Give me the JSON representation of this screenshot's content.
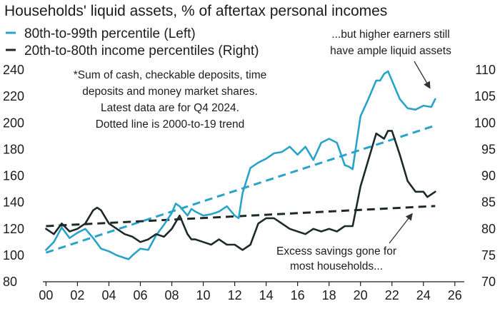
{
  "chart_data": {
    "type": "line",
    "title": "Households' liquid assets, % of aftertax personal incomes",
    "legend_position": "top-left",
    "series": [
      {
        "name": "80th-to-99th percentile (Left)",
        "axis": "left",
        "color": "#2aa3c9",
        "x": [
          2000,
          2000.5,
          2001,
          2001.5,
          2002,
          2002.5,
          2003,
          2003.25,
          2003.5,
          2004,
          2004.5,
          2005,
          2005.25,
          2005.5,
          2006,
          2006.5,
          2007,
          2007.5,
          2008,
          2008.25,
          2008.5,
          2009,
          2009.25,
          2009.5,
          2010,
          2010.5,
          2011,
          2011.5,
          2012,
          2012.25,
          2012.5,
          2013,
          2013.5,
          2014,
          2014.5,
          2015,
          2015.5,
          2016,
          2016.5,
          2017,
          2017.5,
          2018,
          2018.5,
          2019,
          2019.25,
          2019.5,
          2020,
          2020.5,
          2021,
          2021.25,
          2021.5,
          2021.75,
          2022,
          2022.5,
          2023,
          2023.5,
          2024,
          2024.5,
          2024.75
        ],
        "y": [
          104,
          110,
          121,
          113,
          117,
          120,
          113,
          109,
          105,
          103,
          100,
          98,
          97,
          100,
          105,
          104,
          115,
          123,
          132,
          139,
          137,
          130,
          135,
          133,
          130,
          131,
          133,
          137,
          130,
          128,
          147,
          166,
          170,
          173,
          177,
          178,
          182,
          176,
          182,
          172,
          185,
          188,
          185,
          168,
          167,
          165,
          205,
          218,
          232,
          232,
          237,
          239,
          232,
          218,
          211,
          210,
          213,
          212,
          218
        ]
      },
      {
        "name": "20th-to-80th income percentiles (Right)",
        "axis": "right",
        "color": "#1e2a2a",
        "x": [
          2000,
          2000.5,
          2001,
          2001.5,
          2002,
          2002.5,
          2003,
          2003.25,
          2003.5,
          2004,
          2004.5,
          2005,
          2005.5,
          2006,
          2006.5,
          2007,
          2007.5,
          2008,
          2008.5,
          2009,
          2009.25,
          2009.5,
          2010,
          2010.5,
          2011,
          2011.5,
          2012,
          2012.5,
          2013,
          2013.5,
          2014,
          2014.5,
          2015,
          2015.5,
          2016,
          2016.5,
          2017,
          2017.5,
          2018,
          2018.5,
          2019,
          2019.5,
          2020,
          2020.5,
          2021,
          2021.5,
          2021.75,
          2022,
          2022.5,
          2023,
          2023.5,
          2024,
          2024.25,
          2024.5,
          2024.75
        ],
        "y": [
          80,
          79,
          81,
          79.5,
          80,
          81,
          83.5,
          84,
          83.5,
          81,
          80,
          79,
          78.5,
          77.5,
          78,
          79,
          78.5,
          80,
          82.5,
          79,
          78,
          78,
          77.5,
          77,
          78,
          77,
          77,
          76,
          77,
          81,
          82,
          82,
          81,
          80,
          79.5,
          79,
          80,
          79.5,
          80,
          79.5,
          80.5,
          80.5,
          88,
          93,
          98,
          97,
          98.5,
          98.5,
          94,
          89,
          87,
          87,
          86,
          86.5,
          87
        ]
      }
    ],
    "trend_lines": [
      {
        "axis": "left",
        "color": "#2aa3c9",
        "x": [
          2000,
          2024.75
        ],
        "y": [
          102,
          198
        ]
      },
      {
        "axis": "right",
        "color": "#1e2a2a",
        "x": [
          2000,
          2024.75
        ],
        "y": [
          80.5,
          84.3
        ]
      }
    ],
    "x_axis": {
      "min": 1999.8,
      "max": 2026.6,
      "ticks": [
        2000,
        2002,
        2004,
        2006,
        2008,
        2010,
        2012,
        2014,
        2016,
        2018,
        2020,
        2022,
        2024,
        2026
      ],
      "tick_labels": [
        "00",
        "02",
        "04",
        "06",
        "08",
        "10",
        "12",
        "14",
        "16",
        "18",
        "20",
        "22",
        "24",
        "26"
      ]
    },
    "y_left": {
      "min": 80,
      "max": 240,
      "ticks": [
        80,
        100,
        120,
        140,
        160,
        180,
        200,
        220,
        240
      ]
    },
    "y_right": {
      "min": 70,
      "max": 110,
      "ticks": [
        70,
        75,
        80,
        85,
        90,
        95,
        100,
        105,
        110
      ]
    },
    "grid": false,
    "annotations": {
      "note": [
        "*Sum of cash, checkable deposits, time",
        "deposits and money market shares.",
        "Latest data are for Q4 2024.",
        "Dotted line is 2000-to-19 trend"
      ],
      "higher_earners": [
        "...but higher earners still",
        "have ample liquid assets"
      ],
      "excess_savings": [
        "Excess savings gone for",
        "most households..."
      ]
    }
  }
}
